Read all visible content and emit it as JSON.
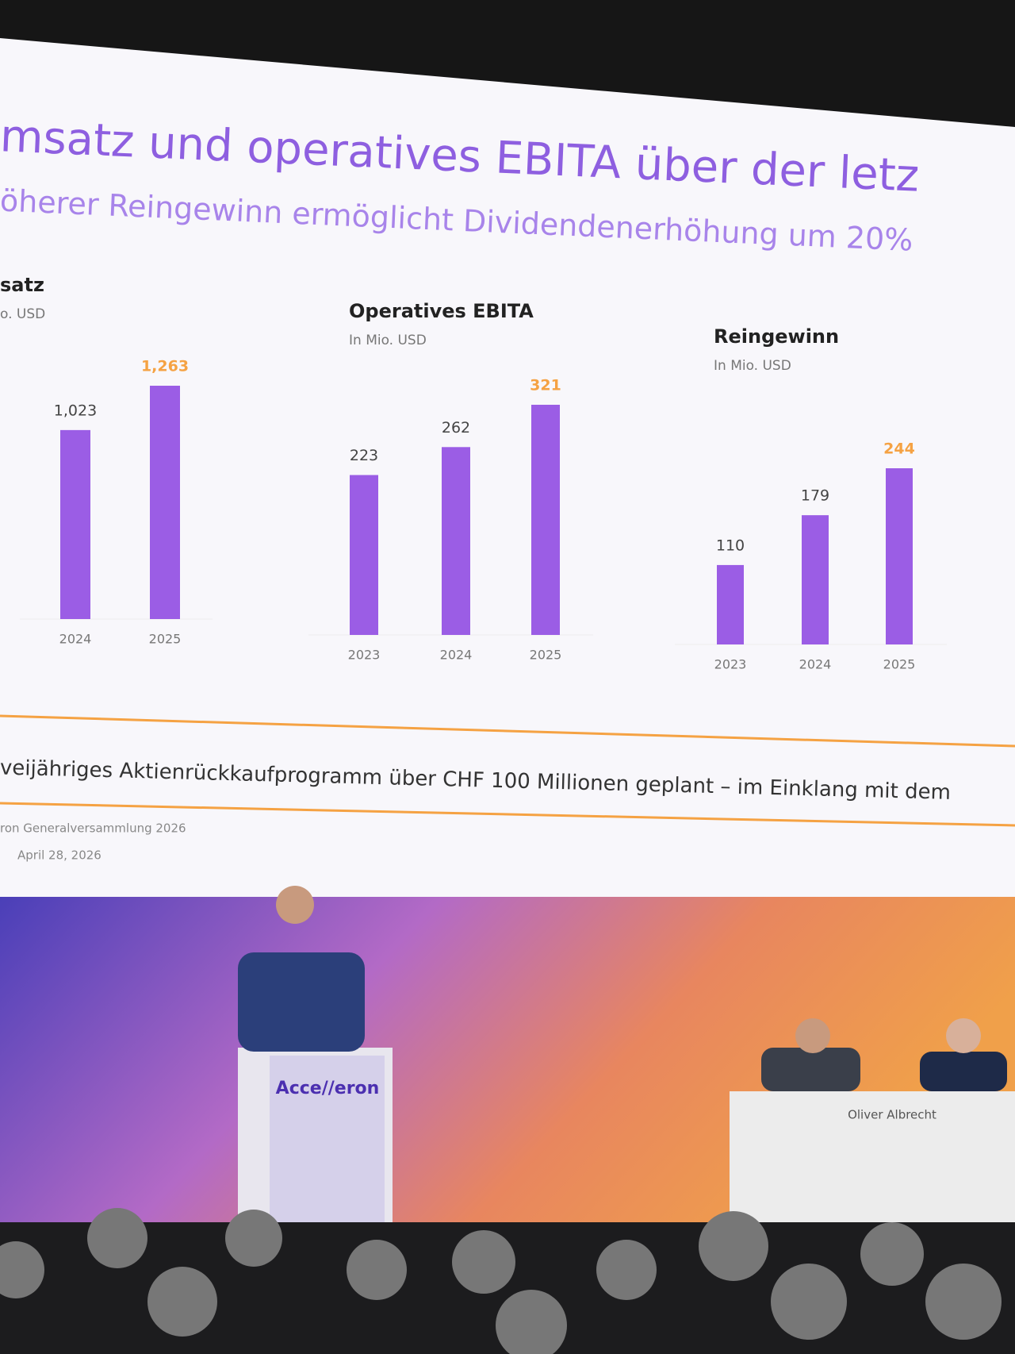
{
  "slide": {
    "title": "msatz und operatives EBITA über der letz",
    "subtitle": "öherer Reingewinn ermöglicht Dividendenerhöhung um 20%",
    "note": "veijähriges Aktienrückkaufprogramm über CHF 100 Millionen geplant – im Einklang mit dem",
    "footer": "ron Generalversammlung 2026",
    "date": "April 28, 2026"
  },
  "stage": {
    "podium_logo": "Acce//eron",
    "nameplate": "Oliver Albrecht"
  },
  "chart_data": [
    {
      "type": "bar",
      "title": "satz",
      "subtitle": "o. USD",
      "categories": [
        "2024",
        "2025"
      ],
      "values": [
        1023,
        1263
      ],
      "value_labels": [
        "1,023",
        "1,263"
      ],
      "color": "#9b5de5",
      "highlight_color": "#f5a243"
    },
    {
      "type": "bar",
      "title": "Operatives EBITA",
      "subtitle": "In Mio. USD",
      "categories": [
        "2023",
        "2024",
        "2025"
      ],
      "values": [
        223,
        262,
        321
      ],
      "color": "#9b5de5",
      "highlight_color": "#f5a243"
    },
    {
      "type": "bar",
      "title": "Reingewinn",
      "subtitle": "In Mio. USD",
      "categories": [
        "2023",
        "2024",
        "2025"
      ],
      "values": [
        110,
        179,
        244
      ],
      "color": "#9b5de5",
      "highlight_color": "#f5a243"
    }
  ]
}
